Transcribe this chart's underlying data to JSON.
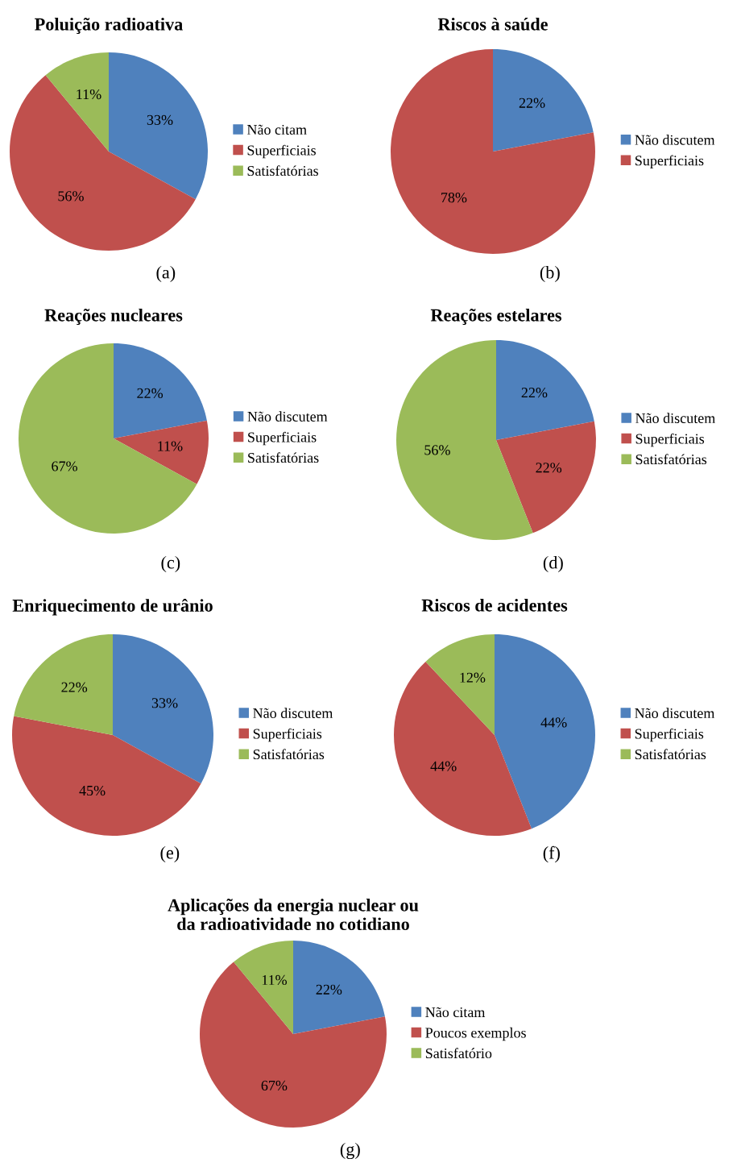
{
  "chart_data": [
    {
      "type": "pie",
      "title": "Poluição radioativa",
      "categories": [
        "Não citam",
        "Superficiais",
        "Satisfatórias"
      ],
      "values": [
        33,
        56,
        11
      ],
      "value_labels": [
        "33%",
        "56%",
        "11%"
      ],
      "colors": [
        "#4f81bd",
        "#c0504d",
        "#9bbb59"
      ],
      "legend": "right",
      "annotations": [
        "(a)"
      ]
    },
    {
      "type": "pie",
      "title": "Riscos à saúde",
      "categories": [
        "Não discutem",
        "Superficiais"
      ],
      "values": [
        22,
        78
      ],
      "value_labels": [
        "22%",
        "78%"
      ],
      "colors": [
        "#4f81bd",
        "#c0504d"
      ],
      "legend": "right",
      "annotations": [
        "(b)"
      ]
    },
    {
      "type": "pie",
      "title": "Reações nucleares",
      "categories": [
        "Não discutem",
        "Superficiais",
        "Satisfatórias"
      ],
      "values": [
        22,
        11,
        67
      ],
      "value_labels": [
        "22%",
        "11%",
        "67%"
      ],
      "colors": [
        "#4f81bd",
        "#c0504d",
        "#9bbb59"
      ],
      "legend": "right",
      "annotations": [
        "(c)"
      ]
    },
    {
      "type": "pie",
      "title": "Reações estelares",
      "categories": [
        "Não discutem",
        "Superficiais",
        "Satisfatórias"
      ],
      "values": [
        22,
        22,
        56
      ],
      "value_labels": [
        "22%",
        "22%",
        "56%"
      ],
      "colors": [
        "#4f81bd",
        "#c0504d",
        "#9bbb59"
      ],
      "legend": "right",
      "annotations": [
        "(d)"
      ]
    },
    {
      "type": "pie",
      "title": "Enriquecimento de urânio",
      "categories": [
        "Não discutem",
        "Superficiais",
        "Satisfatórias"
      ],
      "values": [
        33,
        45,
        22
      ],
      "value_labels": [
        "33%",
        "45%",
        "22%"
      ],
      "colors": [
        "#4f81bd",
        "#c0504d",
        "#9bbb59"
      ],
      "legend": "right",
      "annotations": [
        "(e)"
      ]
    },
    {
      "type": "pie",
      "title": "Riscos de acidentes",
      "categories": [
        "Não discutem",
        "Superficiais",
        "Satisfatórias"
      ],
      "values": [
        44,
        44,
        12
      ],
      "value_labels": [
        "44%",
        "44%",
        "12%"
      ],
      "colors": [
        "#4f81bd",
        "#c0504d",
        "#9bbb59"
      ],
      "legend": "right",
      "annotations": [
        "(f)"
      ]
    },
    {
      "type": "pie",
      "title": "Aplicações da energia nuclear ou\nda radioatividade no cotidiano",
      "categories": [
        "Não citam",
        "Poucos exemplos",
        "Satisfatório"
      ],
      "values": [
        22,
        67,
        11
      ],
      "value_labels": [
        "22%",
        "67%",
        "11%"
      ],
      "colors": [
        "#4f81bd",
        "#c0504d",
        "#9bbb59"
      ],
      "legend": "right",
      "annotations": [
        "(g)"
      ]
    }
  ]
}
